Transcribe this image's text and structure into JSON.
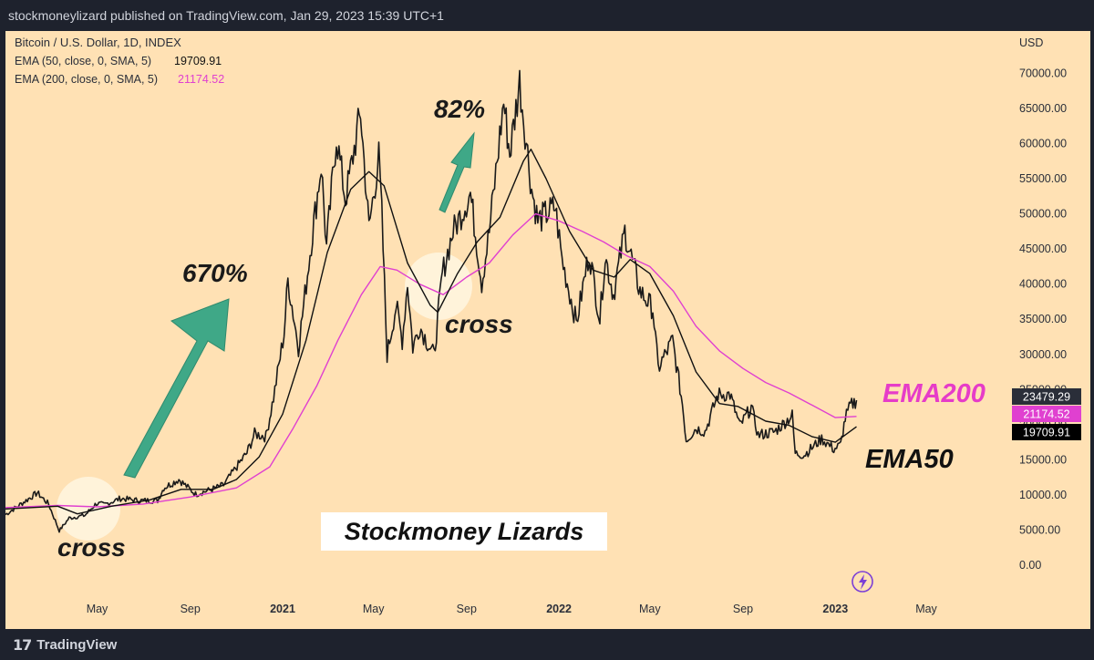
{
  "header": {
    "publisher_line": "stockmoneylizard published on TradingView.com, Jan 29, 2023 15:39 UTC+1"
  },
  "legend": {
    "symbol": "Bitcoin / U.S. Dollar, 1D, INDEX",
    "ema50_label": "EMA (50, close, 0, SMA, 5)",
    "ema50_value": "19709.91",
    "ema200_label": "EMA (200, close, 0, SMA, 5)",
    "ema200_value": "21174.52"
  },
  "annotations": {
    "pct_670": "670%",
    "pct_82": "82%",
    "cross_1": "cross",
    "cross_2": "cross",
    "ema200_tag": "EMA200",
    "ema50_tag": "EMA50",
    "watermark": "Stockmoney Lizards"
  },
  "footer": {
    "brand": "TradingView"
  },
  "colors": {
    "background": "#ffe1b4",
    "price": "#1a1a1a",
    "ema50": "#111111",
    "ema200": "#e040d0",
    "arrow": "#3fa887",
    "ema200_tag": "#e63cc8",
    "price_tag": "#2a2e39"
  },
  "chart_data": {
    "type": "line",
    "title": "Bitcoin / U.S. Dollar, 1D, INDEX",
    "currency_label": "USD",
    "ylim": [
      0,
      72000
    ],
    "y_ticks": [
      0,
      5000,
      10000,
      15000,
      20000,
      25000,
      30000,
      35000,
      40000,
      45000,
      50000,
      55000,
      60000,
      65000,
      70000
    ],
    "y_tick_labels": [
      "0.00",
      "5000.00",
      "10000.00",
      "15000.00",
      "20000.00",
      "25000.00",
      "30000.00",
      "35000.00",
      "40000.00",
      "45000.00",
      "50000.00",
      "55000.00",
      "60000.00",
      "65000.00",
      "70000.00"
    ],
    "x_range": [
      "2020-01-01",
      "2023-08-15"
    ],
    "x_ticks": [
      {
        "date": "2020-05-01",
        "label": "May",
        "bold": false
      },
      {
        "date": "2020-09-01",
        "label": "Sep",
        "bold": false
      },
      {
        "date": "2021-01-01",
        "label": "2021",
        "bold": true
      },
      {
        "date": "2021-05-01",
        "label": "May",
        "bold": false
      },
      {
        "date": "2021-09-01",
        "label": "Sep",
        "bold": false
      },
      {
        "date": "2022-01-01",
        "label": "2022",
        "bold": true
      },
      {
        "date": "2022-05-01",
        "label": "May",
        "bold": false
      },
      {
        "date": "2022-09-01",
        "label": "Sep",
        "bold": false
      },
      {
        "date": "2023-01-01",
        "label": "2023",
        "bold": true
      },
      {
        "date": "2023-05-01",
        "label": "May",
        "bold": false
      }
    ],
    "grid": false,
    "price_labels": [
      {
        "value": 23479.29,
        "text": "23479.29",
        "role": "last-price"
      },
      {
        "value": 21174.52,
        "text": "21174.52",
        "role": "ema200"
      },
      {
        "value": 19709.91,
        "text": "19709.91",
        "role": "ema50"
      }
    ],
    "series": [
      {
        "name": "Bitcoin / U.S. Dollar",
        "points": [
          [
            "2020-01-01",
            7200
          ],
          [
            "2020-01-20",
            8600
          ],
          [
            "2020-02-12",
            10300
          ],
          [
            "2020-02-27",
            8700
          ],
          [
            "2020-03-12",
            4900
          ],
          [
            "2020-03-25",
            6700
          ],
          [
            "2020-04-15",
            7100
          ],
          [
            "2020-04-30",
            8800
          ],
          [
            "2020-05-10",
            8600
          ],
          [
            "2020-06-01",
            9500
          ],
          [
            "2020-06-25",
            9200
          ],
          [
            "2020-07-20",
            9200
          ],
          [
            "2020-07-28",
            11000
          ],
          [
            "2020-08-17",
            12200
          ],
          [
            "2020-09-08",
            10100
          ],
          [
            "2020-09-30",
            10800
          ],
          [
            "2020-10-15",
            11400
          ],
          [
            "2020-10-31",
            13800
          ],
          [
            "2020-11-15",
            16000
          ],
          [
            "2020-11-25",
            18700
          ],
          [
            "2020-12-10",
            18300
          ],
          [
            "2020-12-20",
            23800
          ],
          [
            "2021-01-03",
            33000
          ],
          [
            "2021-01-08",
            40600
          ],
          [
            "2021-01-22",
            31000
          ],
          [
            "2021-02-08",
            46000
          ],
          [
            "2021-02-21",
            57000
          ],
          [
            "2021-02-28",
            45200
          ],
          [
            "2021-03-13",
            61100
          ],
          [
            "2021-03-25",
            52000
          ],
          [
            "2021-04-14",
            64500
          ],
          [
            "2021-04-25",
            48000
          ],
          [
            "2021-05-08",
            58000
          ],
          [
            "2021-05-12",
            50000
          ],
          [
            "2021-05-19",
            30000
          ],
          [
            "2021-05-31",
            37000
          ],
          [
            "2021-06-08",
            32000
          ],
          [
            "2021-06-15",
            40200
          ],
          [
            "2021-06-22",
            31000
          ],
          [
            "2021-07-01",
            34000
          ],
          [
            "2021-07-20",
            29800
          ],
          [
            "2021-07-31",
            41500
          ],
          [
            "2021-08-14",
            47500
          ],
          [
            "2021-08-23",
            49500
          ],
          [
            "2021-09-06",
            52900
          ],
          [
            "2021-09-21",
            40200
          ],
          [
            "2021-10-01",
            47500
          ],
          [
            "2021-10-20",
            66000
          ],
          [
            "2021-10-28",
            58500
          ],
          [
            "2021-11-10",
            68800
          ],
          [
            "2021-11-26",
            53500
          ],
          [
            "2021-12-04",
            49000
          ],
          [
            "2021-12-27",
            51000
          ],
          [
            "2022-01-05",
            43500
          ],
          [
            "2022-01-24",
            34500
          ],
          [
            "2022-02-10",
            44500
          ],
          [
            "2022-02-24",
            35000
          ],
          [
            "2022-03-03",
            44000
          ],
          [
            "2022-03-14",
            38500
          ],
          [
            "2022-03-29",
            47500
          ],
          [
            "2022-04-18",
            39000
          ],
          [
            "2022-05-05",
            36500
          ],
          [
            "2022-05-12",
            28000
          ],
          [
            "2022-05-31",
            32000
          ],
          [
            "2022-06-13",
            23000
          ],
          [
            "2022-06-18",
            17800
          ],
          [
            "2022-07-01",
            19500
          ],
          [
            "2022-07-13",
            19000
          ],
          [
            "2022-07-30",
            24300
          ],
          [
            "2022-08-15",
            24300
          ],
          [
            "2022-08-28",
            19800
          ],
          [
            "2022-09-12",
            22500
          ],
          [
            "2022-09-21",
            18500
          ],
          [
            "2022-10-13",
            19000
          ],
          [
            "2022-10-25",
            20200
          ],
          [
            "2022-11-05",
            21300
          ],
          [
            "2022-11-09",
            15900
          ],
          [
            "2022-11-21",
            15700
          ],
          [
            "2022-12-14",
            18000
          ],
          [
            "2022-12-30",
            16500
          ],
          [
            "2023-01-08",
            17100
          ],
          [
            "2023-01-14",
            20900
          ],
          [
            "2023-01-21",
            22700
          ],
          [
            "2023-01-29",
            23479.29
          ]
        ]
      },
      {
        "name": "EMA (50, close, 0, SMA, 5)",
        "points": [
          [
            "2020-01-01",
            8000
          ],
          [
            "2020-03-10",
            8400
          ],
          [
            "2020-04-05",
            7300
          ],
          [
            "2020-05-20",
            8400
          ],
          [
            "2020-07-10",
            9300
          ],
          [
            "2020-08-20",
            10800
          ],
          [
            "2020-10-01",
            10800
          ],
          [
            "2020-11-01",
            12200
          ],
          [
            "2020-12-01",
            15400
          ],
          [
            "2021-01-01",
            21500
          ],
          [
            "2021-02-01",
            32000
          ],
          [
            "2021-03-01",
            44500
          ],
          [
            "2021-04-01",
            53500
          ],
          [
            "2021-04-25",
            56000
          ],
          [
            "2021-05-15",
            54000
          ],
          [
            "2021-06-15",
            43000
          ],
          [
            "2021-07-15",
            37000
          ],
          [
            "2021-07-25",
            36000
          ],
          [
            "2021-08-20",
            41500
          ],
          [
            "2021-09-15",
            46000
          ],
          [
            "2021-10-15",
            49500
          ],
          [
            "2021-11-15",
            57500
          ],
          [
            "2021-11-25",
            59200
          ],
          [
            "2021-12-15",
            55000
          ],
          [
            "2022-01-15",
            47500
          ],
          [
            "2022-02-15",
            42000
          ],
          [
            "2022-03-15",
            41000
          ],
          [
            "2022-04-05",
            43500
          ],
          [
            "2022-05-01",
            41500
          ],
          [
            "2022-06-01",
            35500
          ],
          [
            "2022-07-01",
            27500
          ],
          [
            "2022-08-01",
            23000
          ],
          [
            "2022-08-25",
            22600
          ],
          [
            "2022-10-01",
            20500
          ],
          [
            "2022-11-01",
            19900
          ],
          [
            "2022-12-01",
            18300
          ],
          [
            "2023-01-01",
            17500
          ],
          [
            "2023-01-29",
            19709.91
          ]
        ]
      },
      {
        "name": "EMA (200, close, 0, SMA, 5)",
        "points": [
          [
            "2020-01-01",
            8200
          ],
          [
            "2020-03-10",
            8500
          ],
          [
            "2020-05-01",
            8300
          ],
          [
            "2020-07-01",
            8700
          ],
          [
            "2020-09-01",
            9700
          ],
          [
            "2020-11-01",
            11000
          ],
          [
            "2020-12-15",
            14000
          ],
          [
            "2021-01-15",
            19500
          ],
          [
            "2021-02-15",
            25500
          ],
          [
            "2021-03-15",
            32000
          ],
          [
            "2021-04-15",
            38500
          ],
          [
            "2021-05-10",
            42500
          ],
          [
            "2021-06-01",
            42000
          ],
          [
            "2021-07-01",
            40000
          ],
          [
            "2021-08-01",
            38500
          ],
          [
            "2021-09-01",
            41000
          ],
          [
            "2021-10-01",
            43000
          ],
          [
            "2021-11-01",
            47000
          ],
          [
            "2021-12-01",
            50000
          ],
          [
            "2022-01-01",
            49000
          ],
          [
            "2022-02-01",
            47500
          ],
          [
            "2022-03-01",
            46000
          ],
          [
            "2022-04-01",
            44000
          ],
          [
            "2022-05-01",
            42500
          ],
          [
            "2022-06-01",
            39000
          ],
          [
            "2022-07-01",
            34000
          ],
          [
            "2022-08-01",
            30500
          ],
          [
            "2022-09-01",
            28000
          ],
          [
            "2022-10-01",
            26000
          ],
          [
            "2022-11-01",
            24500
          ],
          [
            "2022-12-01",
            22800
          ],
          [
            "2023-01-01",
            21000
          ],
          [
            "2023-01-29",
            21174.52
          ]
        ]
      }
    ]
  }
}
